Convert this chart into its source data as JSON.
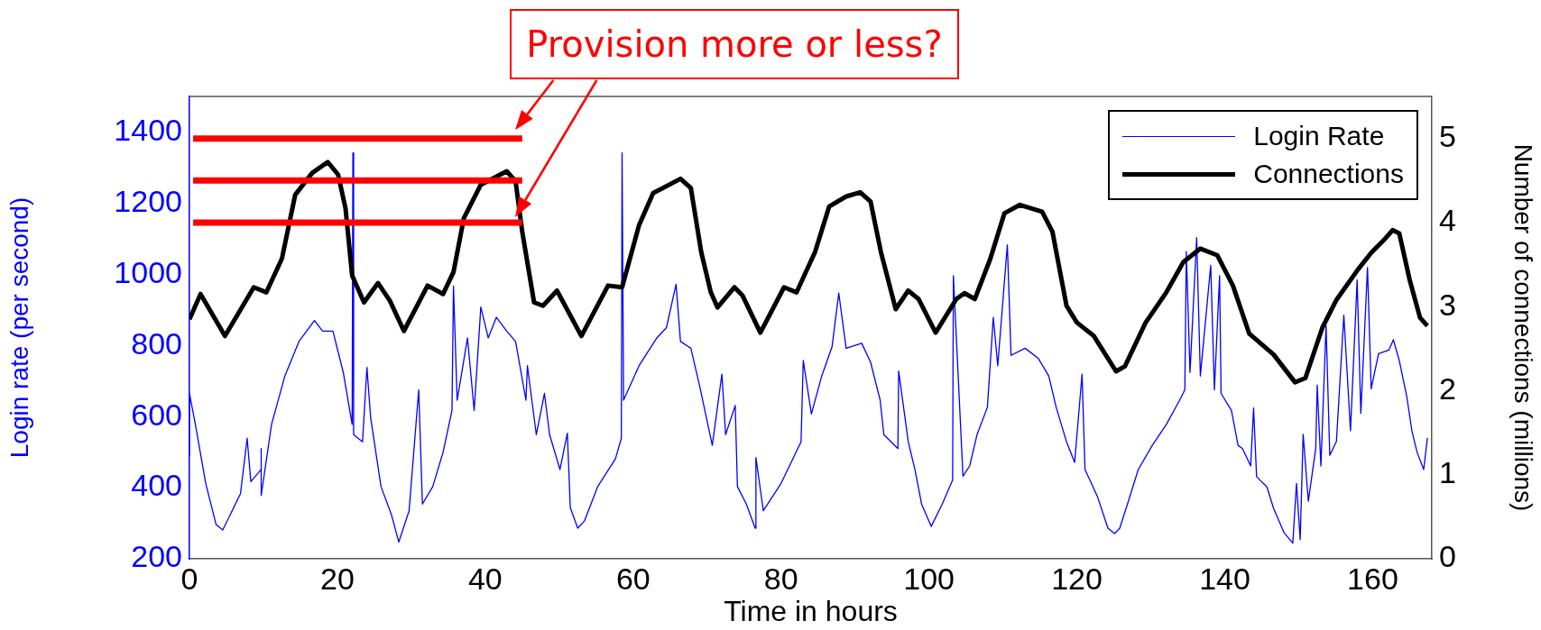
{
  "chart_data": {
    "type": "line",
    "xlabel": "Time in hours",
    "ylabel": "Login rate (per second)",
    "y2label": "Number of connections (millions)",
    "annotations": [
      {
        "text": "Provision more or less?",
        "x": 44,
        "y": 1380
      }
    ],
    "xlim": [
      0,
      168
    ],
    "xticks": [
      0,
      20,
      40,
      60,
      80,
      100,
      120,
      140,
      160
    ],
    "ylim": [
      200,
      1500
    ],
    "yticks": [
      200,
      400,
      600,
      800,
      1000,
      1200,
      1400
    ],
    "y2lim": [
      0,
      5.5
    ],
    "y2ticks": [
      0,
      1,
      2,
      3,
      4,
      5
    ],
    "grid": false,
    "legend": "top right",
    "marker": "none",
    "line_style": "solid",
    "series": [
      {
        "name": "Login Rate",
        "color": "#0000ff",
        "x": [
          0,
          0,
          0.8,
          2.2,
          3.6,
          4.5,
          6.9,
          7.8,
          8.3,
          9.7,
          9.7,
          9.7,
          11.1,
          12.9,
          14.8,
          16.9,
          18,
          19.4,
          20.8,
          22,
          22.1,
          22.2,
          23.4,
          24,
          24.5,
          25.9,
          27.3,
          28.3,
          29.7,
          31,
          31.5,
          32.9,
          34.3,
          35.5,
          35.7,
          36.2,
          37.6,
          38.5,
          39.4,
          40.4,
          41.5,
          42.9,
          44.1,
          45.5,
          45.7,
          46.9,
          48,
          48.7,
          50.1,
          51.1,
          51.5,
          52.5,
          53.4,
          55.2,
          57.6,
          58.4,
          58.5,
          58.7,
          60.8,
          63.2,
          64.5,
          65.8,
          66.4,
          67.8,
          69,
          70.7,
          72,
          72.5,
          73.8,
          74.1,
          75.3,
          76.5,
          76.6,
          77.6,
          80,
          81.8,
          82.7,
          83,
          84.1,
          85.5,
          86.9,
          87.8,
          88.8,
          90.9,
          92.1,
          93.4,
          93.9,
          95.8,
          95.9,
          97.2,
          98.1,
          99,
          100.3,
          101.8,
          103.2,
          103.3,
          104.6,
          105.5,
          106.5,
          107.9,
          108.7,
          109.3,
          110.6,
          111.1,
          113,
          114.8,
          116.2,
          117.2,
          118.6,
          119.7,
          120.7,
          121.1,
          122.8,
          124.2,
          125.1,
          125.8,
          127,
          128.3,
          130.2,
          132.1,
          133.9,
          134.6,
          134.8,
          135.3,
          136.2,
          136.7,
          138.1,
          138.6,
          139.3,
          139.5,
          140.9,
          141.8,
          142.4,
          143.5,
          143.9,
          144.3,
          145.7,
          146.6,
          148,
          149.2,
          149.7,
          150.2,
          150.6,
          151.3,
          152.3,
          152.5,
          153,
          153.7,
          154.2,
          155.1,
          156.1,
          157,
          157.9,
          158.4,
          159.3,
          159.8,
          160.8,
          162.2,
          162.8,
          163.6,
          164.6,
          165.3,
          166,
          166.9,
          167.4
        ],
        "values": [
          490,
          665,
          578,
          412,
          296,
          281,
          383,
          539,
          417,
          451,
          510,
          378,
          578,
          714,
          811,
          870,
          840,
          840,
          724,
          578,
          1341,
          549,
          529,
          738,
          597,
          403,
          325,
          247,
          335,
          675,
          354,
          403,
          500,
          617,
          967,
          646,
          821,
          617,
          908,
          821,
          879,
          840,
          811,
          646,
          743,
          549,
          665,
          549,
          451,
          553,
          344,
          286,
          306,
          403,
          481,
          539,
          1341,
          646,
          743,
          821,
          850,
          972,
          811,
          792,
          685,
          519,
          719,
          549,
          631,
          403,
          354,
          286,
          485,
          335,
          412,
          490,
          529,
          758,
          607,
          714,
          797,
          947,
          792,
          806,
          753,
          646,
          549,
          510,
          728,
          529,
          451,
          354,
          291,
          354,
          422,
          996,
          432,
          461,
          549,
          626,
          879,
          743,
          1083,
          772,
          792,
          763,
          714,
          626,
          529,
          471,
          719,
          451,
          374,
          286,
          271,
          286,
          364,
          451,
          519,
          578,
          646,
          675,
          1064,
          724,
          1103,
          714,
          1025,
          675,
          996,
          665,
          617,
          519,
          510,
          461,
          624,
          431,
          402,
          342,
          274,
          244,
          412,
          254,
          550,
          362,
          510,
          688,
          461,
          856,
          491,
          530,
          885,
          560,
          984,
          609,
          1019,
          678,
          777,
          787,
          816,
          757,
          658,
          560,
          500,
          451,
          540
        ]
      },
      {
        "name": "Connections",
        "color": "#000000",
        "axis": "y2",
        "x": [
          0,
          1.5,
          4.8,
          8.7,
          10.4,
          12.5,
          14.3,
          16.6,
          18.7,
          20.1,
          21.1,
          22,
          23.6,
          25.5,
          27.1,
          29,
          32.2,
          34.3,
          35.7,
          37.1,
          39.4,
          42.9,
          44.1,
          45,
          46.6,
          47.8,
          49.7,
          53,
          56.6,
          58.5,
          60.8,
          62.7,
          66.4,
          67.8,
          69.2,
          70.5,
          71.4,
          73.7,
          74.8,
          77.2,
          80.4,
          82.1,
          84.6,
          86.5,
          88.8,
          90.7,
          92.1,
          93.5,
          95.5,
          97.2,
          98.6,
          100.9,
          103.7,
          104.8,
          106.2,
          108.3,
          110.2,
          112.3,
          115.3,
          116.7,
          118.6,
          120,
          122.3,
          125.3,
          126.5,
          129.3,
          132.1,
          134.4,
          136.7,
          139,
          141.1,
          143.3,
          146.6,
          149.5,
          150.9,
          153.2,
          155.1,
          158,
          159.8,
          161.7,
          162.7,
          163.6,
          165,
          166.4,
          167.4
        ],
        "values": [
          2.85,
          3.15,
          2.65,
          3.23,
          3.17,
          3.57,
          4.33,
          4.59,
          4.72,
          4.57,
          4.17,
          3.37,
          3.05,
          3.28,
          3.07,
          2.71,
          3.25,
          3.15,
          3.41,
          4.05,
          4.45,
          4.61,
          4.49,
          3.89,
          3.05,
          3.01,
          3.19,
          2.65,
          3.25,
          3.23,
          3.97,
          4.35,
          4.52,
          4.41,
          3.65,
          3.17,
          2.99,
          3.23,
          3.13,
          2.69,
          3.23,
          3.17,
          3.65,
          4.19,
          4.31,
          4.36,
          4.25,
          3.65,
          2.97,
          3.19,
          3.09,
          2.69,
          3.09,
          3.16,
          3.09,
          3.57,
          4.11,
          4.21,
          4.13,
          3.89,
          3.01,
          2.81,
          2.65,
          2.23,
          2.29,
          2.81,
          3.17,
          3.53,
          3.69,
          3.61,
          3.25,
          2.68,
          2.43,
          2.1,
          2.15,
          2.75,
          3.08,
          3.44,
          3.64,
          3.81,
          3.91,
          3.87,
          3.32,
          2.87,
          2.77
        ]
      },
      {
        "color": "#ff0000",
        "axis": "y2",
        "x": [
          0.5,
          45
        ],
        "values": [
          5,
          5
        ]
      },
      {
        "color": "#ff0000",
        "axis": "y2",
        "x": [
          0.5,
          45
        ],
        "values": [
          4.5,
          4.5
        ]
      },
      {
        "color": "#ff0000",
        "axis": "y2",
        "x": [
          0.5,
          45
        ],
        "values": [
          4,
          4
        ]
      }
    ]
  }
}
